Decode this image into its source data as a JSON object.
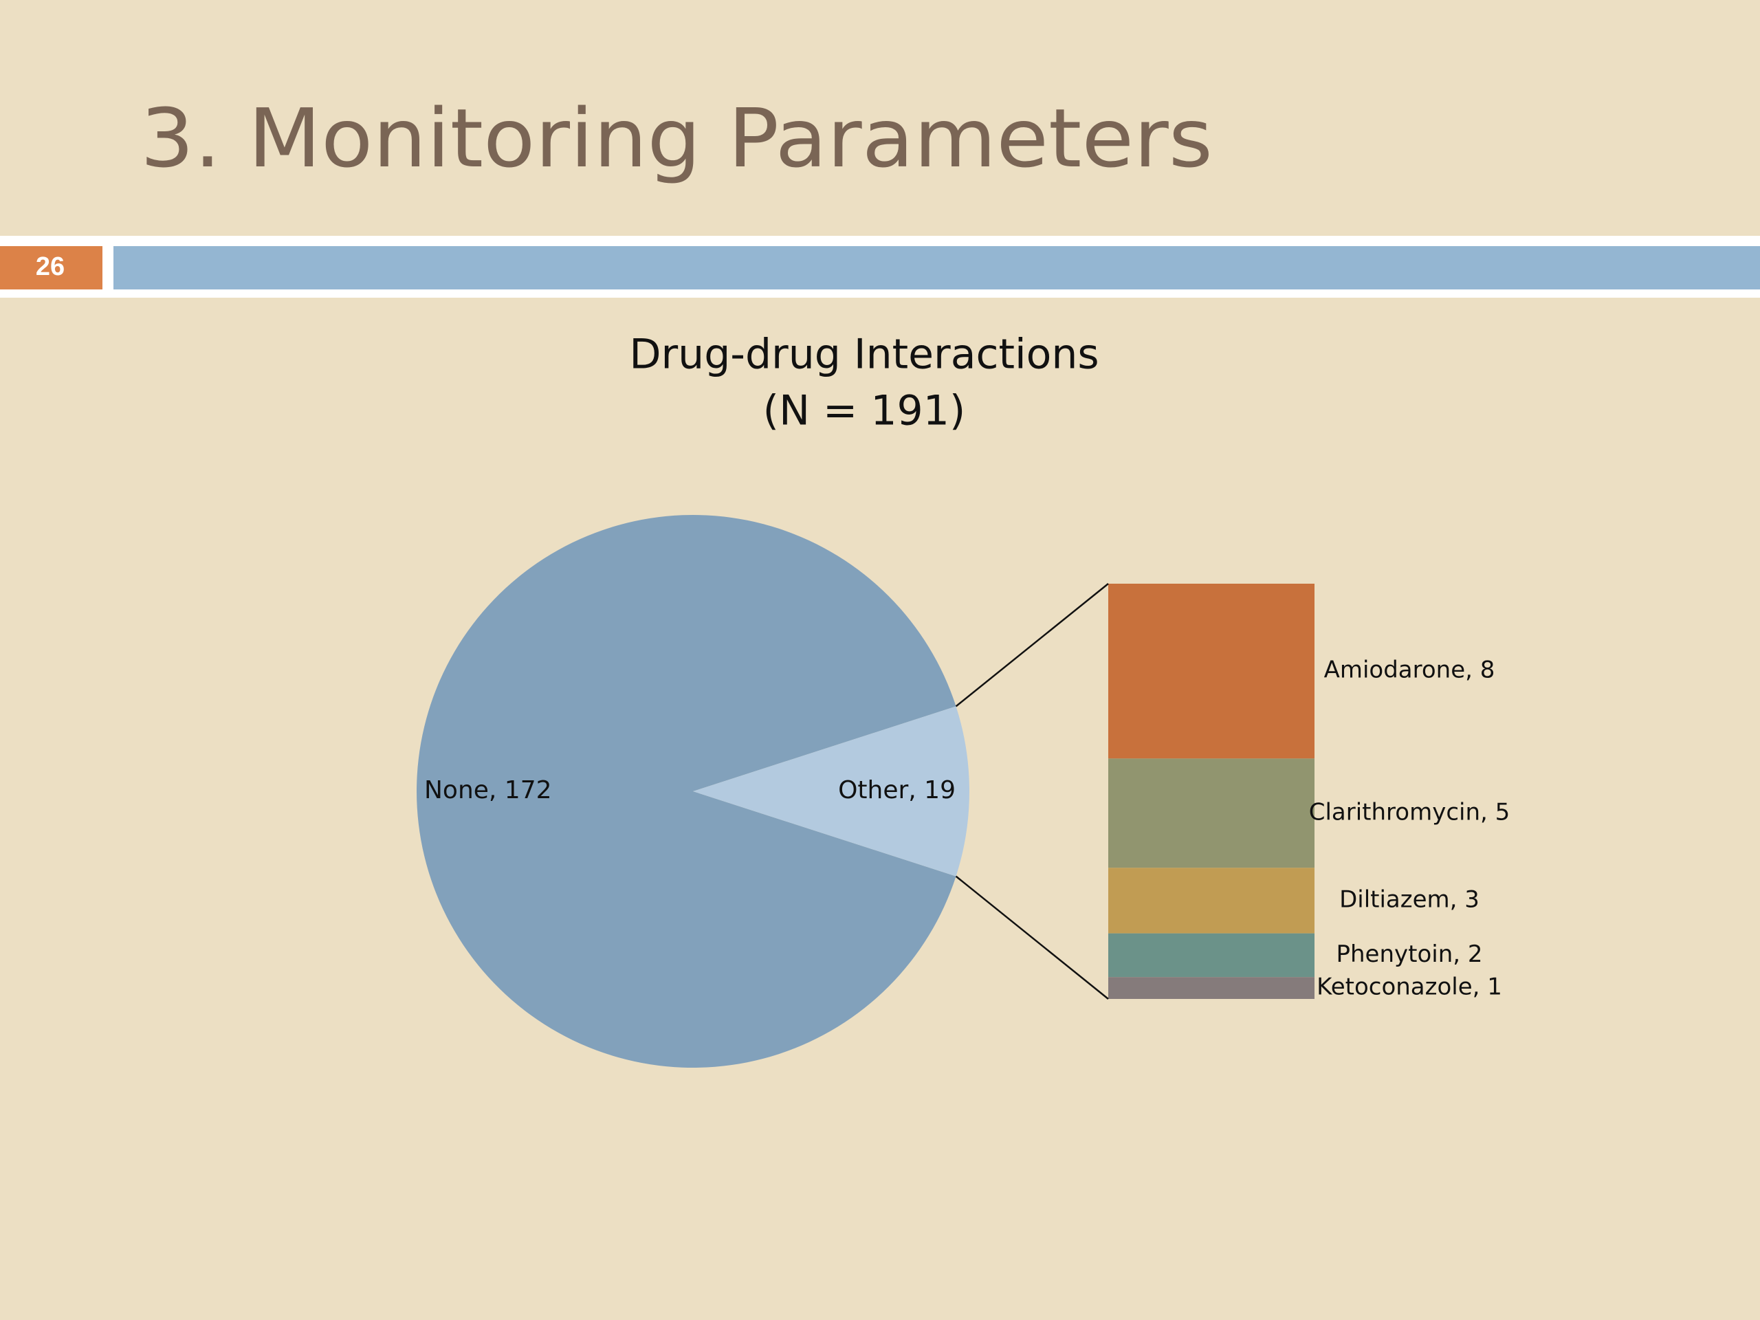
{
  "slide_title": "3. Monitoring Parameters",
  "slide_number": "26",
  "chart_data": {
    "type": "pie-of-bar",
    "title": "Drug-drug Interactions",
    "subtitle": "(N = 191)",
    "values": [
      172,
      19
    ],
    "value_labels": [
      "None, 172",
      "Other, 19"
    ],
    "colors": [
      "#82a1bb",
      "#b3cadf"
    ],
    "breakdown": {
      "values": [
        8,
        5,
        3,
        2,
        1
      ],
      "value_labels": [
        "Amiodarone, 8",
        "Clarithromycin, 5",
        "Diltiazem, 3",
        "Phenytoin, 2",
        "Ketoconazole, 1"
      ],
      "colors": [
        "#c8713c",
        "#91956f",
        "#c19c53",
        "#6b9289",
        "#857b7b"
      ]
    }
  }
}
